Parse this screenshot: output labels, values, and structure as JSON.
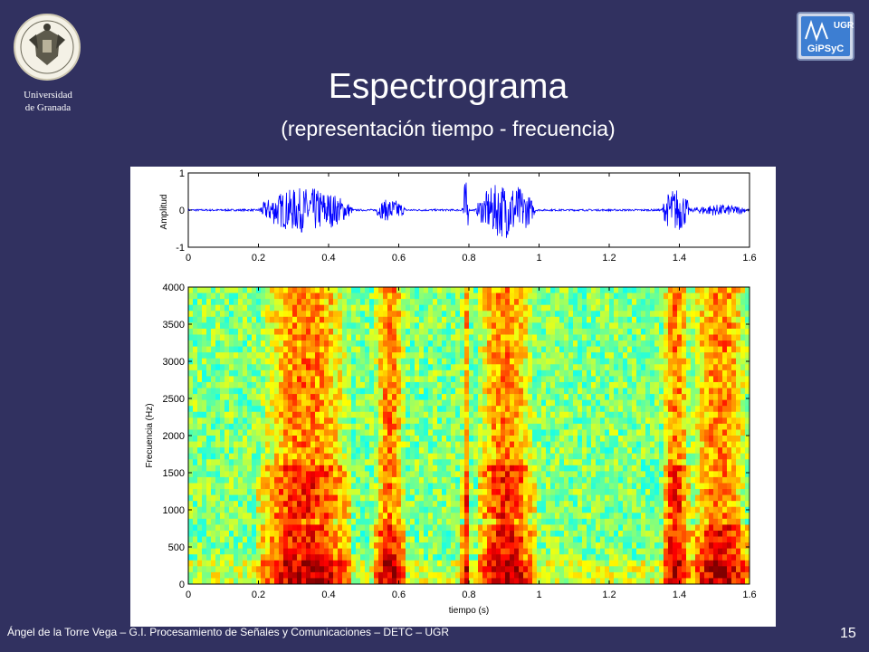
{
  "header": {
    "university_name": "Universidad\nde Granada",
    "right_logo": {
      "icon": "gipsyc-logo-icon",
      "text_top": "UGR",
      "text_bottom": "GiPSyC"
    },
    "left_logo": {
      "icon": "university-crest-icon"
    }
  },
  "slide": {
    "title": "Espectrograma",
    "subtitle": "(representación tiempo - frecuencia)"
  },
  "footer": {
    "credits": "Ángel de la Torre Vega – G.I. Procesamiento de Señales y Comunicaciones – DETC – UGR",
    "page_number": "15"
  },
  "colors": {
    "background": "#313160",
    "waveform": "#0000ff",
    "spectrogram_low": "#00bfff",
    "spectrogram_mid": "#ffff00",
    "spectrogram_high": "#ff0000"
  },
  "chart_data": [
    {
      "type": "line",
      "ylabel": "Amplitud",
      "xlabel": "",
      "xlim": [
        0,
        1.6
      ],
      "ylim": [
        -1,
        1
      ],
      "x_ticks": [
        "0",
        "0.2",
        "0.4",
        "0.6",
        "0.8",
        "1",
        "1.2",
        "1.4",
        "1.6"
      ],
      "y_ticks": [
        "1",
        "0",
        "-1"
      ],
      "segments": [
        {
          "start": 0.2,
          "end": 0.47,
          "peak": 0.6
        },
        {
          "start": 0.53,
          "end": 0.62,
          "peak": 0.3
        },
        {
          "start": 0.78,
          "end": 0.8,
          "peak": 0.8
        },
        {
          "start": 0.82,
          "end": 0.99,
          "peak": 0.75
        },
        {
          "start": 1.35,
          "end": 1.43,
          "peak": 0.6
        },
        {
          "start": 1.43,
          "end": 1.6,
          "peak": 0.15
        }
      ]
    },
    {
      "type": "heatmap",
      "xlabel": "tiempo (s)",
      "ylabel": "Frecuencia (Hz)",
      "xlim": [
        0,
        1.6
      ],
      "ylim": [
        0,
        4000
      ],
      "x_ticks": [
        "0",
        "0.2",
        "0.4",
        "0.6",
        "0.8",
        "1",
        "1.2",
        "1.4",
        "1.6"
      ],
      "y_ticks": [
        "0",
        "500",
        "1000",
        "1500",
        "2000",
        "2500",
        "3000",
        "3500",
        "4000"
      ],
      "colormap": "jet"
    }
  ]
}
